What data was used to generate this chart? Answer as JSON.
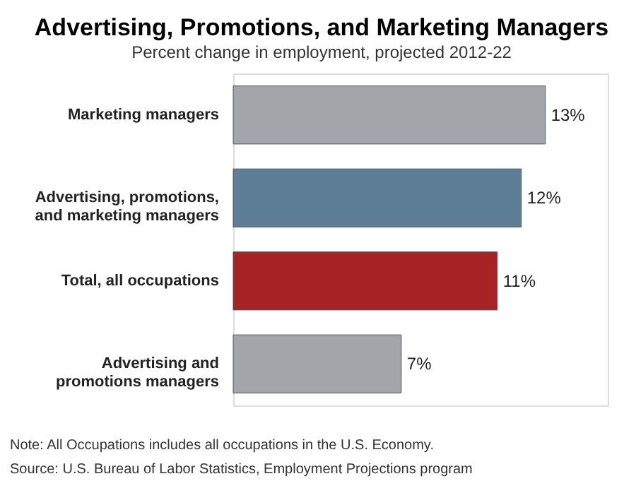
{
  "chart_data": {
    "type": "bar",
    "orientation": "horizontal",
    "title": "Advertising, Promotions, and Marketing Managers",
    "subtitle": "Percent change in employment, projected 2012-22",
    "categories": [
      "Marketing managers",
      "Advertising, promotions, and marketing managers",
      "Total, all occupations",
      "Advertising and promotions managers"
    ],
    "values": [
      13,
      12,
      11,
      7
    ],
    "colors": [
      "#a2a5a9",
      "#5e7e98",
      "#a82325",
      "#a2a5a9"
    ],
    "value_labels": [
      "13%",
      "12%",
      "11%",
      "7%"
    ],
    "annotations": [
      "Note: All Occupations includes all occupations in the U.S. Economy.",
      "Source: U.S. Bureau of Labor Statistics, Employment Projections program"
    ]
  }
}
